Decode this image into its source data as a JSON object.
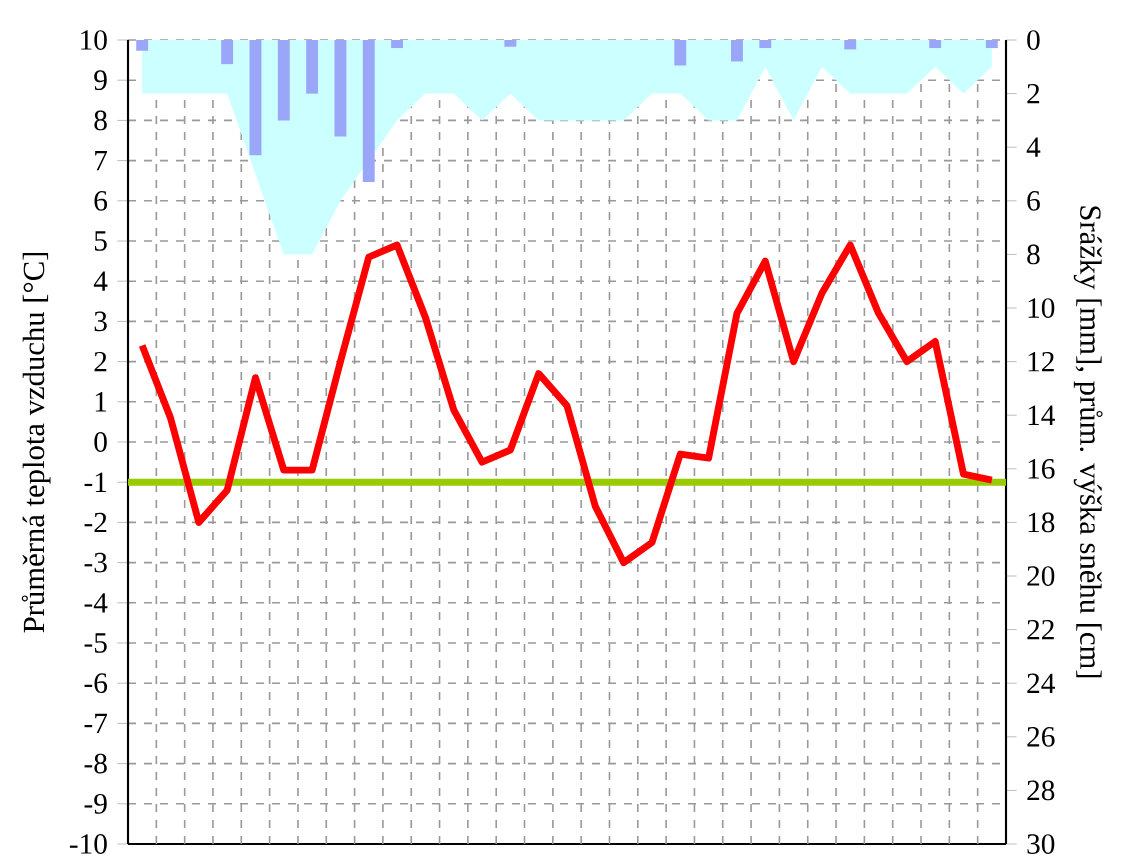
{
  "chart_data": {
    "type": "line",
    "ylabel": "Průměrná teplota vzduchu [°C]",
    "y2label": "Srážky [mm], prům. výška sněhu [cm]",
    "categories": [
      null,
      null,
      null,
      null,
      null,
      null,
      null,
      null,
      null,
      null,
      null,
      null,
      null,
      null,
      null,
      null,
      null,
      null,
      null,
      null,
      null,
      null,
      null,
      null,
      null,
      null,
      null,
      null,
      null,
      null,
      null
    ],
    "series": [
      {
        "type": "area",
        "axis": "y2",
        "color": "#ccffff",
        "values": [
          2,
          2,
          2,
          2,
          5,
          8,
          8,
          6,
          null,
          3,
          2,
          2,
          3,
          2,
          3,
          3,
          3,
          3,
          2,
          2,
          3,
          3,
          1,
          3,
          1,
          2,
          2,
          2,
          1,
          2,
          1
        ]
      },
      {
        "type": "bar",
        "axis": "y2",
        "color": "#9aa6f8",
        "values": [
          0.4,
          null,
          null,
          0.9,
          4.3,
          3.0,
          2.0,
          3.6,
          5.3,
          0.3,
          null,
          null,
          null,
          0.25,
          null,
          null,
          null,
          null,
          null,
          0.95,
          null,
          0.8,
          0.3,
          null,
          null,
          0.35,
          null,
          null,
          0.3,
          null,
          0.3
        ]
      },
      {
        "axis": "y",
        "color": "#ff0000",
        "values": [
          2.4,
          0.6,
          -2.0,
          -1.2,
          1.6,
          -0.7,
          -0.7,
          2.0,
          4.6,
          4.9,
          3.1,
          0.8,
          -0.5,
          -0.2,
          1.7,
          0.9,
          -1.6,
          -3.0,
          -2.5,
          -0.3,
          -0.4,
          3.2,
          4.5,
          2.0,
          3.7,
          4.9,
          3.2,
          2.0,
          2.5,
          -0.8,
          -0.95
        ]
      }
    ],
    "ylim": [
      -10,
      10
    ],
    "yticks": [
      -10,
      -9,
      -8,
      -7,
      -6,
      -5,
      -4,
      -3,
      -2,
      -1,
      0,
      1,
      2,
      3,
      4,
      5,
      6,
      7,
      8,
      9,
      10
    ],
    "y2lim": [
      30,
      0
    ],
    "y2ticks": [
      0,
      2,
      4,
      6,
      8,
      10,
      12,
      14,
      16,
      18,
      20,
      22,
      24,
      26,
      28,
      30
    ],
    "ref_lines": [
      {
        "axis": "y",
        "value": -1,
        "color": "#99cc00"
      }
    ],
    "grid": true
  }
}
